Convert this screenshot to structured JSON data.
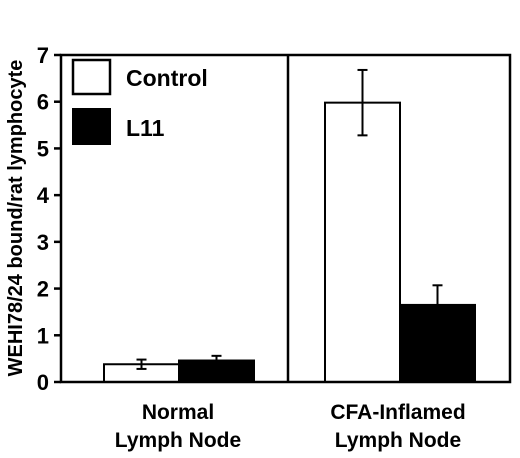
{
  "chart_data": {
    "type": "bar",
    "title": "",
    "xlabel": "",
    "ylabel": "WEHI78/24 bound/rat lymphocyte",
    "ylim": [
      0,
      7
    ],
    "yticks": [
      "0",
      "1",
      "2",
      "3",
      "4",
      "5",
      "6",
      "7"
    ],
    "grid": false,
    "legend_position": "top-left",
    "groups": [
      {
        "label_line1": "Normal",
        "label_line2": "Lymph Node"
      },
      {
        "label_line1": "CFA-Inflamed",
        "label_line2": "Lymph Node"
      }
    ],
    "series": [
      {
        "name": "Control",
        "fill": "#ffffff",
        "values": [
          0.38,
          5.98
        ],
        "errors": [
          0.1,
          0.7
        ]
      },
      {
        "name": "L11",
        "fill": "#000000",
        "values": [
          0.46,
          1.65
        ],
        "errors": [
          0.1,
          0.42
        ]
      }
    ]
  }
}
